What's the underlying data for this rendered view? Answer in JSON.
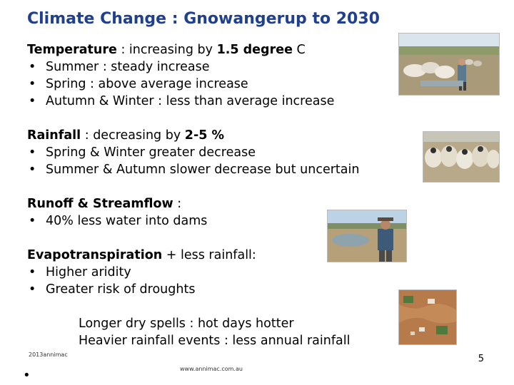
{
  "title": "Climate  Change  :  Gnowangerup   to 2030",
  "temperature": {
    "label": "Temperature",
    "mid": " :  increasing  by ",
    "value": "1.5 degree",
    "unit": " C",
    "bullets": [
      "Summer :  steady increase",
      "Spring : above average increase",
      "Autumn & Winter : less than average increase"
    ]
  },
  "rainfall": {
    "label": "Rainfall",
    "mid": " : decreasing by ",
    "value": "2-5 %",
    "bullets": [
      "Spring & Winter greater decrease",
      "Summer & Autumn slower decrease  but uncertain"
    ]
  },
  "runoff": {
    "label": "Runoff & Streamflow",
    "mid": " :",
    "bullets": [
      "40% less water into dams"
    ]
  },
  "evapo": {
    "label": "Evapotranspiration",
    "mid": "  +  less rainfall:",
    "bullets": [
      "Higher aridity",
      "Greater risk of droughts"
    ]
  },
  "summary": [
    "Longer dry spells   :  hot days hotter",
    "Heavier rainfall events   :  less annual rainfall"
  ],
  "footer": {
    "copyright": "2013annimac",
    "url": "www.annimac.com.au",
    "page": "5"
  }
}
